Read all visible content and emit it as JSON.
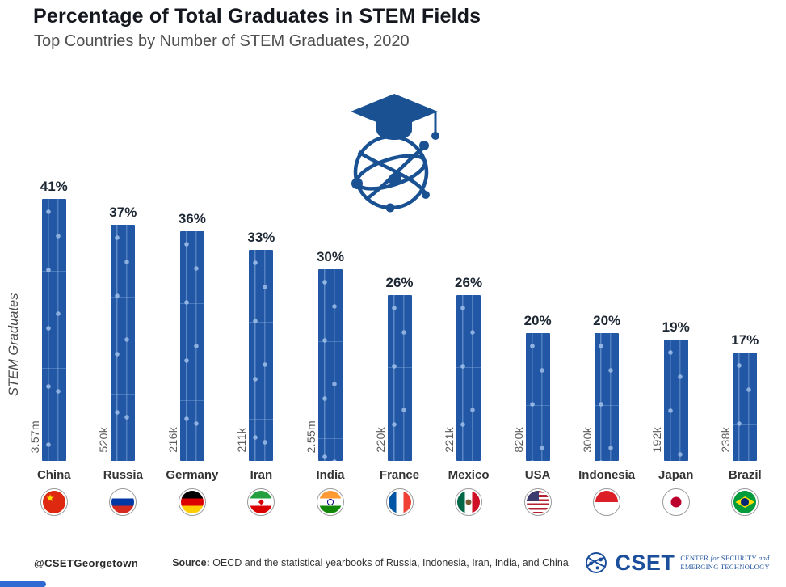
{
  "chart_data": {
    "type": "bar",
    "title": "Percentage of Total Graduates in STEM Fields",
    "subtitle": "Top Countries by Number of STEM Graduates, 2020",
    "ylabel": "STEM Graduates",
    "ylim": [
      0,
      45
    ],
    "grid": false,
    "legend": "none",
    "categories": [
      "China",
      "Russia",
      "Germany",
      "Iran",
      "India",
      "France",
      "Mexico",
      "USA",
      "Indonesia",
      "Japan",
      "Brazil"
    ],
    "values": [
      41,
      37,
      36,
      33,
      30,
      26,
      26,
      20,
      20,
      19,
      17
    ],
    "percent_labels": [
      "41%",
      "37%",
      "36%",
      "33%",
      "30%",
      "26%",
      "26%",
      "20%",
      "20%",
      "19%",
      "17%"
    ],
    "graduate_counts": [
      "3.57m",
      "520k",
      "216k",
      "211k",
      "2.55m",
      "220k",
      "221k",
      "820k",
      "300k",
      "192k",
      "238k"
    ],
    "bar_color": "#2257A5"
  },
  "flags": [
    {
      "country": "China",
      "kind": "solid",
      "colors": [
        "#DE2910"
      ],
      "emblems": [
        "star"
      ]
    },
    {
      "country": "Russia",
      "kind": "h3",
      "colors": [
        "#FFFFFF",
        "#0039A6",
        "#D52B1E"
      ],
      "emblems": []
    },
    {
      "country": "Germany",
      "kind": "h3",
      "colors": [
        "#000000",
        "#DD0000",
        "#FFCE00"
      ],
      "emblems": []
    },
    {
      "country": "Iran",
      "kind": "h3",
      "colors": [
        "#239F40",
        "#FFFFFF",
        "#DA0000"
      ],
      "emblems": [
        "ir"
      ]
    },
    {
      "country": "India",
      "kind": "h3",
      "colors": [
        "#FF9933",
        "#FFFFFF",
        "#138808"
      ],
      "emblems": [
        "chakra"
      ]
    },
    {
      "country": "France",
      "kind": "v3",
      "colors": [
        "#0055A4",
        "#FFFFFF",
        "#EF4135"
      ],
      "emblems": []
    },
    {
      "country": "Mexico",
      "kind": "v3",
      "colors": [
        "#006847",
        "#FFFFFF",
        "#CE1126"
      ],
      "emblems": [
        "mx"
      ]
    },
    {
      "country": "USA",
      "kind": "usa",
      "colors": [
        "#B22234",
        "#FFFFFF",
        "#3C3B6E"
      ],
      "emblems": []
    },
    {
      "country": "Indonesia",
      "kind": "h2",
      "colors": [
        "#DC1F26",
        "#FFFFFF"
      ],
      "emblems": []
    },
    {
      "country": "Japan",
      "kind": "solid",
      "colors": [
        "#FFFFFF"
      ],
      "emblems": [
        "sun"
      ]
    },
    {
      "country": "Brazil",
      "kind": "brazil",
      "colors": [
        "#009C3B",
        "#FEDF00",
        "#002776"
      ],
      "emblems": []
    }
  ],
  "icons": {
    "hero": "graduation-cap-network-globe-icon",
    "accent_color": "#1A5193"
  },
  "footer": {
    "handle": "@CSETGeorgetown",
    "source_label": "Source:",
    "source_text": " OECD and the statistical yearbooks of Russia, Indonesia, Iran, India, and China",
    "logo": {
      "name": "CSET",
      "t1a": "CENTER ",
      "t1b": "for",
      "t1c": " SECURITY ",
      "t1d": "and",
      "t2": "EMERGING TECHNOLOGY",
      "color": "#1B4E9B"
    }
  }
}
